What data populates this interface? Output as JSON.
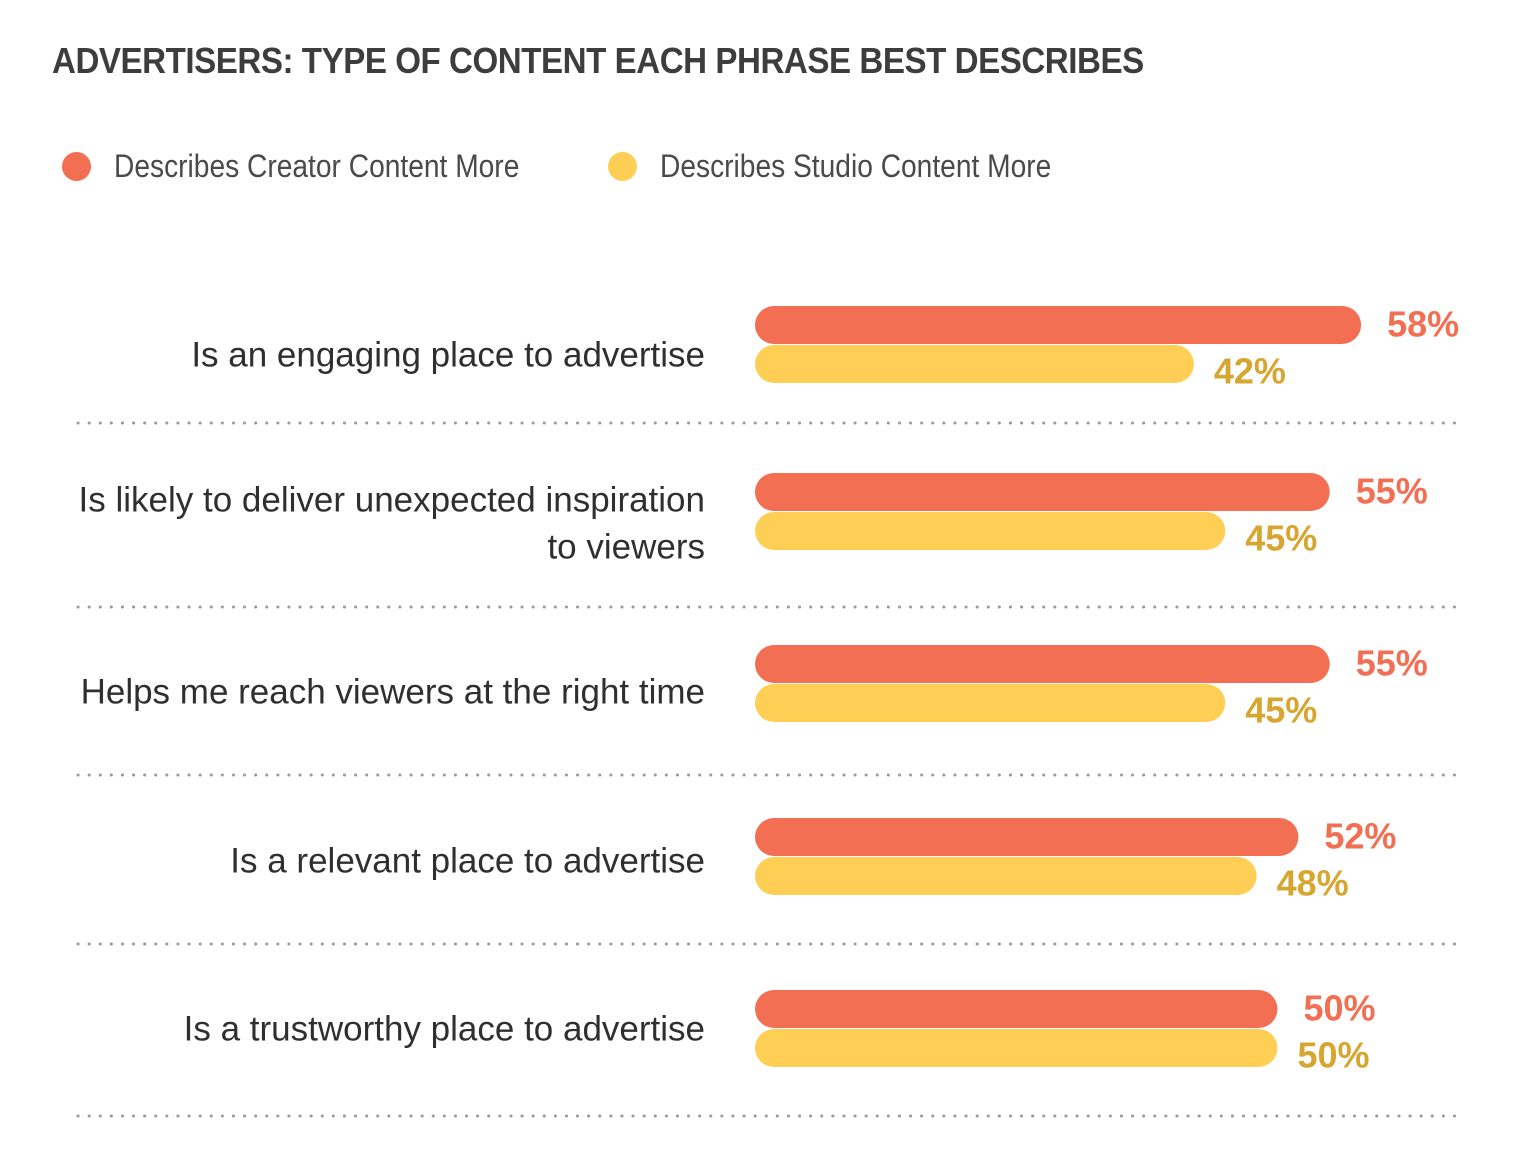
{
  "title": "ADVERTISERS: TYPE OF CONTENT EACH PHRASE BEST DESCRIBES",
  "colors": {
    "creator": "#F26F54",
    "studio": "#FFCE55",
    "studio_text": "#D7A630",
    "divider": "#9a9a9a",
    "label": "#2f2f2f"
  },
  "legend": [
    {
      "label": "Describes Creator Content More",
      "color": "#F26F54"
    },
    {
      "label": "Describes Studio Content More",
      "color": "#FFCE55"
    }
  ],
  "chart_data": {
    "type": "bar",
    "orientation": "horizontal",
    "title": "ADVERTISERS: TYPE OF CONTENT EACH PHRASE BEST DESCRIBES",
    "xlabel": "",
    "ylabel": "",
    "xlim": [
      0,
      100
    ],
    "grid": false,
    "legend_position": "top-left",
    "value_format": "percent",
    "categories": [
      [
        "Is an engaging place to advertise"
      ],
      [
        "Is likely to deliver unexpected inspiration",
        "to viewers"
      ],
      [
        "Helps me reach viewers at the right time"
      ],
      [
        "Is a relevant place to advertise"
      ],
      [
        "Is a trustworthy place to advertise"
      ]
    ],
    "series": [
      {
        "name": "Describes Creator Content More",
        "values": [
          58,
          55,
          55,
          52,
          50
        ]
      },
      {
        "name": "Describes Studio Content More",
        "values": [
          42,
          45,
          45,
          48,
          50
        ]
      }
    ]
  }
}
